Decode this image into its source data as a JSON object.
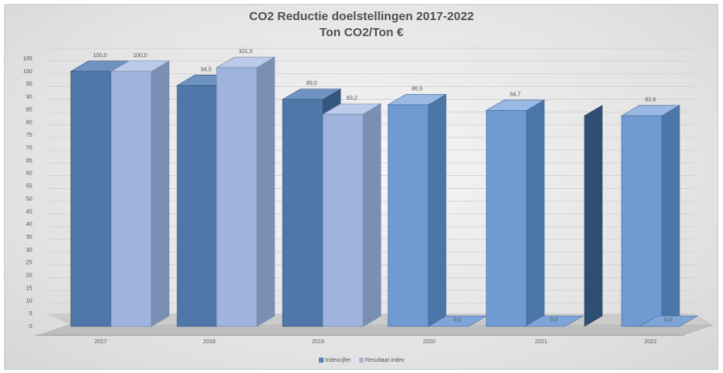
{
  "chart_data": {
    "type": "bar",
    "title": "CO2  Reductie doelstellingen 2017-2022",
    "subtitle": "Ton CO2/Ton €",
    "categories": [
      "2017",
      "2018",
      "2019",
      "2020",
      "2021",
      "2022"
    ],
    "series": [
      {
        "name": "Indexcijfer",
        "values": [
          100.0,
          94.5,
          89.0,
          0,
          0,
          82.6
        ],
        "labels": [
          "100,0",
          "94,5",
          "89,0",
          "",
          "",
          "82,6"
        ],
        "color": "#5a82b4"
      },
      {
        "name": "Resultaat index",
        "values": [
          100.0,
          101.5,
          83.2,
          86.9,
          84.7,
          0.0
        ],
        "labels": [
          "100,0",
          "101,5",
          "83,2",
          "86,9 / 0,0",
          "84,7 / 0,0",
          "0,0"
        ],
        "color": "#a3b8de"
      }
    ],
    "bars": [
      {
        "cat": "2017",
        "kind": "dark",
        "value": 100.0,
        "label": "100,0"
      },
      {
        "cat": "2017",
        "kind": "light",
        "value": 100.0,
        "label": "100,0"
      },
      {
        "cat": "2018",
        "kind": "dark",
        "value": 94.5,
        "label": "94,5"
      },
      {
        "cat": "2018",
        "kind": "light",
        "value": 101.5,
        "label": "101,5"
      },
      {
        "cat": "2019",
        "kind": "dark",
        "value": 89.0,
        "label": "89,0"
      },
      {
        "cat": "2019",
        "kind": "light",
        "value": 83.2,
        "label": "83,2"
      },
      {
        "cat": "2020",
        "kind": "mid",
        "value": 86.9,
        "label": "86,9"
      },
      {
        "cat": "2020",
        "kind": "flat",
        "value": 0.0,
        "label": "0,0"
      },
      {
        "cat": "2021",
        "kind": "mid",
        "value": 84.7,
        "label": "84,7"
      },
      {
        "cat": "2021",
        "kind": "flat",
        "value": 0.0,
        "label": "0,0"
      },
      {
        "cat": "2022",
        "kind": "dark",
        "value": 82.6,
        "label": ""
      },
      {
        "cat": "2022",
        "kind": "mid",
        "value": 82.6,
        "label": "82,6"
      },
      {
        "cat": "2022",
        "kind": "flat",
        "value": 0.0,
        "label": "0,0"
      }
    ],
    "ylim": [
      0,
      105
    ],
    "yticks": [
      "0",
      "5",
      "10",
      "15",
      "20",
      "25",
      "30",
      "35",
      "40",
      "45",
      "50",
      "55",
      "60",
      "65",
      "70",
      "75",
      "80",
      "85",
      "90",
      "95",
      "100",
      "105"
    ],
    "grid": true,
    "legend": "bottom"
  }
}
